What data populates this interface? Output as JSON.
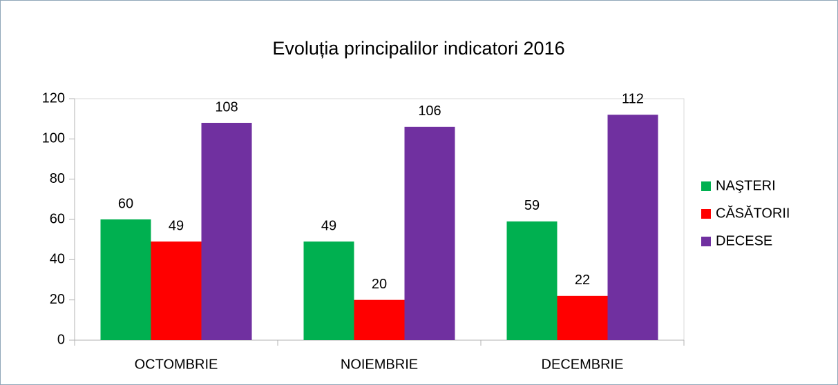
{
  "chart_data": {
    "type": "bar",
    "title": "Evoluția principalilor indicatori 2016",
    "categories": [
      "OCTOMBRIE",
      "NOIEMBRIE",
      "DECEMBRIE"
    ],
    "series": [
      {
        "name": "NAŞTERI",
        "color": "#00b050",
        "values": [
          60,
          49,
          59
        ]
      },
      {
        "name": "CĂSĂTORII",
        "color": "#ff0000",
        "values": [
          49,
          20,
          22
        ]
      },
      {
        "name": "DECESE",
        "color": "#7030a0",
        "values": [
          108,
          106,
          112
        ]
      }
    ],
    "ylim": [
      0,
      120
    ],
    "yticks": [
      0,
      20,
      40,
      60,
      80,
      100,
      120
    ],
    "grid": false,
    "legend": "right"
  }
}
